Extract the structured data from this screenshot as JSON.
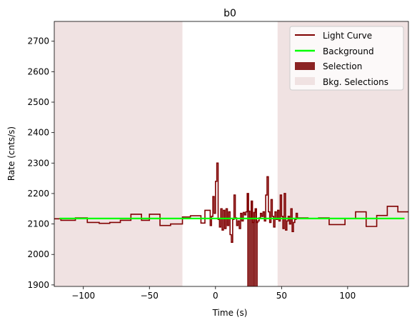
{
  "chart_data": {
    "type": "line",
    "title": "b0",
    "xlabel": "Time (s)",
    "ylabel": "Rate (cnts/s)",
    "xlim": [
      -122,
      146
    ],
    "ylim": [
      1895,
      2765
    ],
    "xticks": [
      -100,
      -50,
      0,
      50,
      100
    ],
    "xtick_labels": [
      "−100",
      "−50",
      "0",
      "50",
      "100"
    ],
    "yticks": [
      1900,
      2000,
      2100,
      2200,
      2300,
      2400,
      2500,
      2600,
      2700
    ],
    "ytick_labels": [
      "1900",
      "2000",
      "2100",
      "2200",
      "2300",
      "2400",
      "2500",
      "2600",
      "2700"
    ],
    "grid": false,
    "legend_position": "top-right",
    "legend": [
      {
        "label": "Light Curve",
        "kind": "line",
        "color": "#7f0000"
      },
      {
        "label": "Background",
        "kind": "line",
        "color": "#00ff00"
      },
      {
        "label": "Selection",
        "kind": "patch",
        "color": "#8b2323"
      },
      {
        "label": "Bkg. Selections",
        "kind": "patch",
        "color": "#f0e2e2"
      }
    ],
    "colors": {
      "light_curve": "#7f0000",
      "background": "#00ff00",
      "selection": "#8b2323",
      "bkg_selection": "#f0e2e2"
    },
    "background_level": 2118,
    "bkg_selections": [
      [
        -122,
        -25
      ],
      [
        47,
        146
      ]
    ],
    "selection_range": [
      24,
      32
    ],
    "light_curve": {
      "step": "post",
      "x": [
        -122,
        -117,
        -106,
        -97,
        -88,
        -80,
        -72,
        -64,
        -56,
        -50,
        -42,
        -34,
        -25,
        -19,
        -11,
        -8,
        -4,
        -3,
        -2,
        -1,
        0,
        1,
        2,
        3,
        4,
        5,
        6,
        7,
        8,
        9,
        10,
        11,
        12,
        13,
        14,
        15,
        16,
        17,
        18,
        19,
        20,
        21,
        22,
        23,
        24,
        25,
        26,
        27,
        28,
        29,
        30,
        31,
        32,
        33,
        34,
        35,
        36,
        37,
        38,
        39,
        40,
        41,
        42,
        43,
        44,
        45,
        46,
        47,
        48,
        49,
        50,
        51,
        52,
        53,
        54,
        55,
        56,
        57,
        58,
        59,
        60,
        61,
        62,
        70,
        78,
        86,
        98,
        106,
        114,
        122,
        130,
        138
      ],
      "y": [
        2117,
        2112,
        2120,
        2105,
        2102,
        2105,
        2112,
        2132,
        2112,
        2132,
        2095,
        2100,
        2123,
        2127,
        2103,
        2145,
        2095,
        2125,
        2190,
        2135,
        2240,
        2300,
        2115,
        2090,
        2150,
        2080,
        2145,
        2085,
        2150,
        2095,
        2140,
        2065,
        2040,
        2115,
        2195,
        2120,
        2095,
        2110,
        2085,
        2135,
        2110,
        2138,
        2130,
        2140,
        2200,
        2142,
        2120,
        2175,
        2105,
        2138,
        2150,
        2105,
        2110,
        2120,
        2135,
        2125,
        2140,
        2110,
        2195,
        2255,
        2140,
        2105,
        2180,
        2125,
        2090,
        2140,
        2115,
        2145,
        2110,
        2195,
        2125,
        2085,
        2200,
        2080,
        2110,
        2125,
        2100,
        2150,
        2075,
        2105,
        2115,
        2135,
        2120,
        2118,
        2120,
        2098,
        2118,
        2140,
        2092,
        2128,
        2158,
        2140
      ],
      "x_end": 146
    }
  }
}
